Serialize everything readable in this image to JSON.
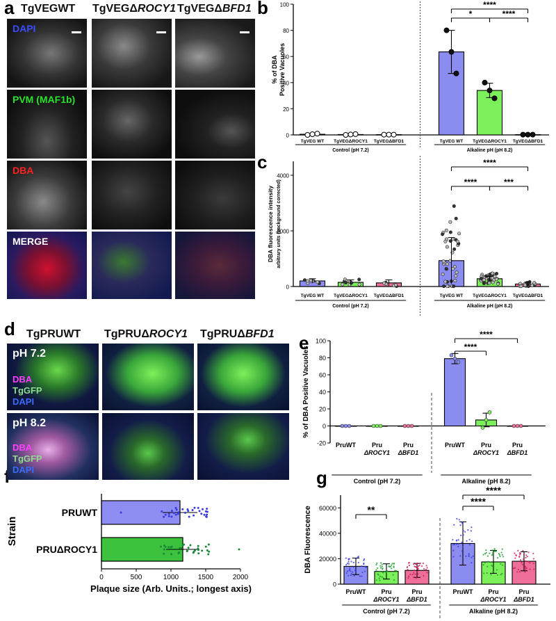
{
  "panel_letters": [
    "a",
    "b",
    "c",
    "d",
    "e",
    "f",
    "g"
  ],
  "panel_a": {
    "columns": [
      "TgVEGWT",
      "TgVEGΔ",
      "ROCY1",
      "TgVEGΔ",
      "BFD1"
    ],
    "rows": [
      "DAPI",
      "PVM (MAF1b)",
      "DBA",
      "MERGE"
    ]
  },
  "panel_d": {
    "columns": [
      "TgPRUWT",
      "TgPRUΔ",
      "ROCY1",
      "TgPRUΔ",
      "BFD1"
    ],
    "row1": {
      "ph": "pH 7.2",
      "stains": [
        "DBA",
        "TgGFP",
        "DAPI"
      ]
    },
    "row2": {
      "ph": "pH 8.2",
      "stains": [
        "DBA",
        "TgGFP",
        "DAPI"
      ]
    }
  },
  "colors": {
    "wt": "#8b8cf0",
    "rocy1": "#7cf05a",
    "bfd1": "#ee6f9a",
    "f_wt": "#8e8ef2",
    "f_rocy1": "#3cc23c",
    "sig": "#000000"
  },
  "chart_data": [
    {
      "panel": "b",
      "type": "bar",
      "ylabel": "% of DBA\nPositive Vacuoles",
      "ylim": [
        0,
        100
      ],
      "yticks": [
        0,
        20,
        40,
        60,
        80,
        100
      ],
      "categories": [
        "TgVEG WT",
        "TgVEGΔROCY1",
        "TgVEGΔBFD1",
        "TgVEG WT",
        "TgVEGΔROCY1",
        "TgVEGΔBFD1"
      ],
      "values": [
        0.5,
        0.3,
        0.2,
        63.5,
        34,
        0.2
      ],
      "errors": [
        0.5,
        0.5,
        0.2,
        16.5,
        5.5,
        0.2
      ],
      "groups": [
        "Control (pH 7.2)",
        "Alkaline pH (pH 8.2)"
      ],
      "significance": [
        "****",
        "*",
        "****"
      ]
    },
    {
      "panel": "c",
      "type": "bar",
      "ylabel": "DBA fluorescence intensity",
      "ylabel2": "arbitrary units (background corrected)",
      "ylim": [
        0,
        4500
      ],
      "yticks": [
        0,
        2000,
        4000
      ],
      "categories": [
        "TgVEG WT",
        "TgVEGΔROCY1",
        "TgVEGΔBFD1",
        "TgVEG WT",
        "TgVEGΔROCY1",
        "TgVEGΔBFD1"
      ],
      "values": [
        200,
        150,
        130,
        930,
        280,
        90
      ],
      "groups": [
        "Control (pH 7.2)",
        "Alkaline pH (pH 8.2)"
      ],
      "significance": [
        "****",
        "****",
        "***"
      ]
    },
    {
      "panel": "e",
      "type": "bar",
      "ylabel": "% of DBA Positive Vacuoles",
      "ylim": [
        -20,
        100
      ],
      "yticks": [
        -20,
        0,
        20,
        40,
        60,
        80,
        100
      ],
      "categories": [
        "PruWT",
        "Pru\nΔROCY1",
        "Pru\nΔBFD1",
        "PruWT",
        "Pru\nΔROCY1",
        "Pru\nΔBFD1"
      ],
      "values": [
        0,
        0,
        0,
        79,
        7,
        0
      ],
      "errors": [
        0.5,
        0.5,
        0.5,
        6,
        8,
        0.5
      ],
      "groups": [
        "Control (pH 7.2)",
        "Alkaline (pH 8.2)"
      ],
      "significance": [
        "****",
        "****"
      ]
    },
    {
      "panel": "f",
      "type": "bar",
      "orientation": "horizontal",
      "ylabel": "Strain",
      "xlabel": "Plaque size  (Arb. Units.; longest axis)",
      "xlim": [
        0,
        2000
      ],
      "xticks": [
        0,
        500,
        1000,
        1500,
        2000
      ],
      "categories": [
        "PRUWT",
        "PRUΔROCY1"
      ],
      "values": [
        1130,
        1170
      ],
      "errors": [
        250,
        240
      ]
    },
    {
      "panel": "g",
      "type": "bar",
      "ylabel": "DBA Fluorescence",
      "ylim": [
        0,
        70000
      ],
      "yticks": [
        0,
        20000,
        40000,
        60000
      ],
      "categories": [
        "PruWT",
        "Pru\nΔROCY1",
        "Pru\nΔBFD1",
        "PruWT",
        "Pru\nΔROCY1",
        "Pru\nΔBFD1"
      ],
      "values": [
        14000,
        10000,
        10800,
        32000,
        17500,
        18000
      ],
      "errors": [
        6500,
        6000,
        5500,
        17000,
        9000,
        7500
      ],
      "groups": [
        "Control (pH 7.2)",
        "Alkaline (pH 8.2)"
      ],
      "significance": [
        "**",
        "****",
        "****"
      ]
    }
  ]
}
